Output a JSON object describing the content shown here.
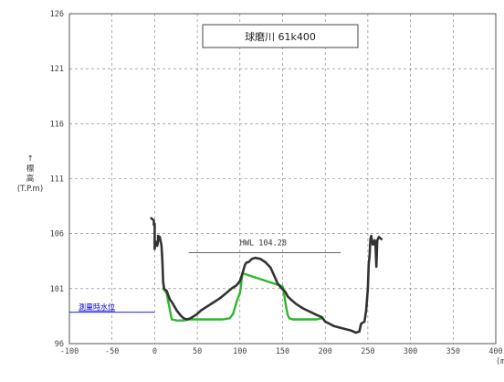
{
  "chart_data": {
    "type": "line",
    "title": "球磨川 61k400",
    "ylabel_lines": [
      "↑",
      "標",
      "高",
      "(T.P.m)"
    ],
    "xunit_label": "(m",
    "xlim": [
      -100,
      400
    ],
    "ylim": [
      96,
      126
    ],
    "xticks": [
      -100,
      -50,
      0,
      50,
      100,
      150,
      200,
      250,
      300,
      350,
      400
    ],
    "yticks": [
      96,
      101,
      106,
      111,
      116,
      121,
      126
    ],
    "grid": true,
    "hwl": {
      "label": "HWL  104.28",
      "value": 104.28,
      "x_range": [
        40,
        218
      ]
    },
    "water_level": {
      "label": "測量時水位",
      "value": 98.85,
      "x_range": [
        -100,
        0
      ]
    },
    "series": [
      {
        "color": "#333333",
        "x": [
          -4,
          -1,
          -1,
          0,
          0,
          1,
          2,
          3,
          4,
          4,
          6,
          8,
          9,
          10,
          11,
          14,
          16,
          18,
          20,
          23,
          26,
          28,
          30,
          34,
          38,
          42,
          46,
          50,
          54,
          60,
          68,
          76,
          84,
          90,
          96,
          100,
          103,
          106,
          108,
          110,
          114,
          118,
          124,
          130,
          136,
          140,
          144,
          148,
          152,
          154,
          156,
          160,
          166,
          174,
          182,
          190,
          196,
          200,
          210,
          220,
          230,
          236,
          240,
          242,
          246,
          248,
          250,
          251,
          252,
          253,
          254,
          255,
          256,
          258,
          259,
          260,
          261,
          263,
          266
        ],
        "y": [
          107.4,
          107.2,
          106.8,
          106.9,
          104.6,
          105.3,
          105.0,
          104.9,
          105.3,
          105.8,
          105.7,
          104.9,
          103.6,
          101.6,
          101.0,
          100.8,
          100.4,
          100.0,
          99.8,
          99.4,
          99.0,
          98.8,
          98.6,
          98.3,
          98.2,
          98.3,
          98.5,
          98.7,
          99.0,
          99.3,
          99.7,
          100.1,
          100.6,
          101.0,
          101.3,
          101.7,
          102.4,
          103.2,
          103.4,
          103.4,
          103.7,
          103.8,
          103.7,
          103.4,
          102.9,
          102.2,
          101.5,
          101.1,
          100.8,
          100.6,
          100.3,
          100.0,
          99.6,
          99.2,
          98.9,
          98.6,
          98.4,
          98.0,
          97.6,
          97.4,
          97.2,
          97.0,
          97.1,
          97.8,
          98.0,
          99.0,
          101.0,
          103.2,
          104.0,
          105.5,
          105.8,
          105.3,
          105.0,
          105.4,
          104.9,
          103.0,
          105.4,
          105.7,
          105.5
        ]
      },
      {
        "color": "#2db82d",
        "x": [
          10,
          12,
          14,
          16,
          20,
          26,
          30,
          34,
          40,
          46,
          50,
          60,
          70,
          80,
          88,
          92,
          96,
          100,
          103,
          150,
          152,
          154,
          156,
          158,
          162,
          170,
          178,
          184,
          190,
          196
        ],
        "y": [
          101.0,
          100.8,
          100.6,
          99.8,
          98.2,
          98.1,
          98.1,
          98.1,
          98.2,
          98.2,
          98.2,
          98.2,
          98.2,
          98.2,
          98.3,
          98.7,
          99.8,
          100.6,
          102.4,
          101.2,
          100.4,
          99.4,
          98.6,
          98.3,
          98.2,
          98.2,
          98.2,
          98.2,
          98.2,
          98.3
        ]
      }
    ]
  }
}
